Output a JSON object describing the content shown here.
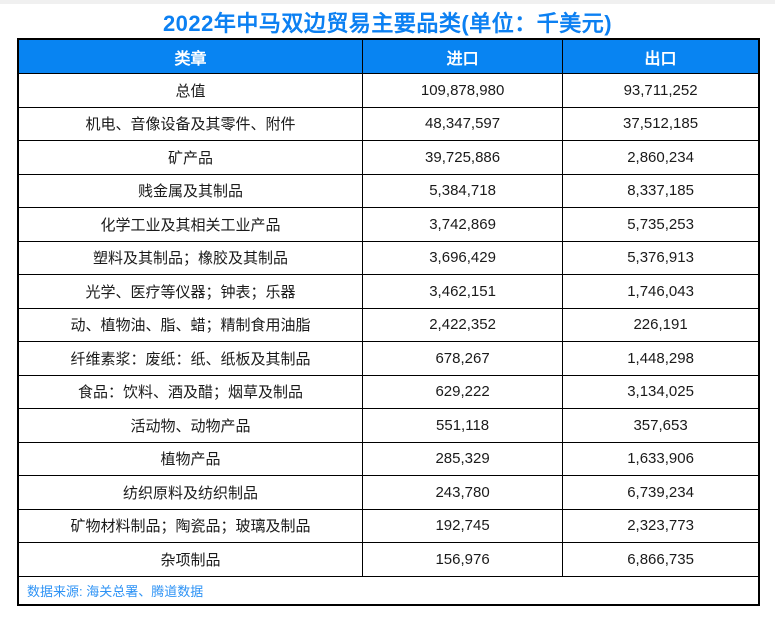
{
  "page": {
    "title": "2022年中马双边贸易主要品类(单位：千美元)",
    "source_note": "数据来源: 海关总署、腾道数据"
  },
  "table": {
    "columns": [
      "类章",
      "进口",
      "出口"
    ],
    "rows": [
      {
        "category": "总值",
        "import": "109,878,980",
        "export": "93,711,252"
      },
      {
        "category": "机电、音像设备及其零件、附件",
        "import": "48,347,597",
        "export": "37,512,185"
      },
      {
        "category": "矿产品",
        "import": "39,725,886",
        "export": "2,860,234"
      },
      {
        "category": "贱金属及其制品",
        "import": "5,384,718",
        "export": "8,337,185"
      },
      {
        "category": "化学工业及其相关工业产品",
        "import": "3,742,869",
        "export": "5,735,253"
      },
      {
        "category": "塑料及其制品；橡胶及其制品",
        "import": "3,696,429",
        "export": "5,376,913"
      },
      {
        "category": "光学、医疗等仪器；钟表；乐器",
        "import": "3,462,151",
        "export": "1,746,043"
      },
      {
        "category": "动、植物油、脂、蜡；精制食用油脂",
        "import": "2,422,352",
        "export": "226,191"
      },
      {
        "category": "纤维素浆：废纸：纸、纸板及其制品",
        "import": "678,267",
        "export": "1,448,298"
      },
      {
        "category": "食品：饮料、酒及醋；烟草及制品",
        "import": "629,222",
        "export": "3,134,025"
      },
      {
        "category": "活动物、动物产品",
        "import": "551,118",
        "export": "357,653"
      },
      {
        "category": "植物产品",
        "import": "285,329",
        "export": "1,633,906"
      },
      {
        "category": "纺织原料及纺织制品",
        "import": "243,780",
        "export": "6,739,234"
      },
      {
        "category": "矿物材料制品；陶瓷品；玻璃及制品",
        "import": "192,745",
        "export": "2,323,773"
      },
      {
        "category": "杂项制品",
        "import": "156,976",
        "export": "6,866,735"
      }
    ]
  },
  "colors": {
    "title_text": "#0c80f2",
    "header_bg": "#0884f2",
    "header_text": "#ffffff",
    "border": "#000000",
    "body_text": "#1a1a1a",
    "source_text": "#2e93f5",
    "top_strip": "#f0f0f0"
  },
  "chart_data": {
    "type": "table",
    "title": "2022年中马双边贸易主要品类(单位：千美元)",
    "unit": "千美元",
    "column_headers": [
      "类章",
      "进口",
      "出口"
    ],
    "categories": [
      "总值",
      "机电、音像设备及其零件、附件",
      "矿产品",
      "贱金属及其制品",
      "化学工业及其相关工业产品",
      "塑料及其制品；橡胶及其制品",
      "光学、医疗等仪器；钟表；乐器",
      "动、植物油、脂、蜡；精制食用油脂",
      "纤维素浆：废纸：纸、纸板及其制品",
      "食品：饮料、酒及醋；烟草及制品",
      "活动物、动物产品",
      "植物产品",
      "纺织原料及纺织制品",
      "矿物材料制品；陶瓷品；玻璃及制品",
      "杂项制品"
    ],
    "series": [
      {
        "name": "进口",
        "values": [
          109878980,
          48347597,
          39725886,
          5384718,
          3742869,
          3696429,
          3462151,
          2422352,
          678267,
          629222,
          551118,
          285329,
          243780,
          192745,
          156976
        ]
      },
      {
        "name": "出口",
        "values": [
          93711252,
          37512185,
          2860234,
          8337185,
          5735253,
          5376913,
          1746043,
          226191,
          1448298,
          3134025,
          357653,
          1633906,
          6739234,
          2323773,
          6866735
        ]
      }
    ],
    "source": "数据来源: 海关总署、腾道数据"
  }
}
